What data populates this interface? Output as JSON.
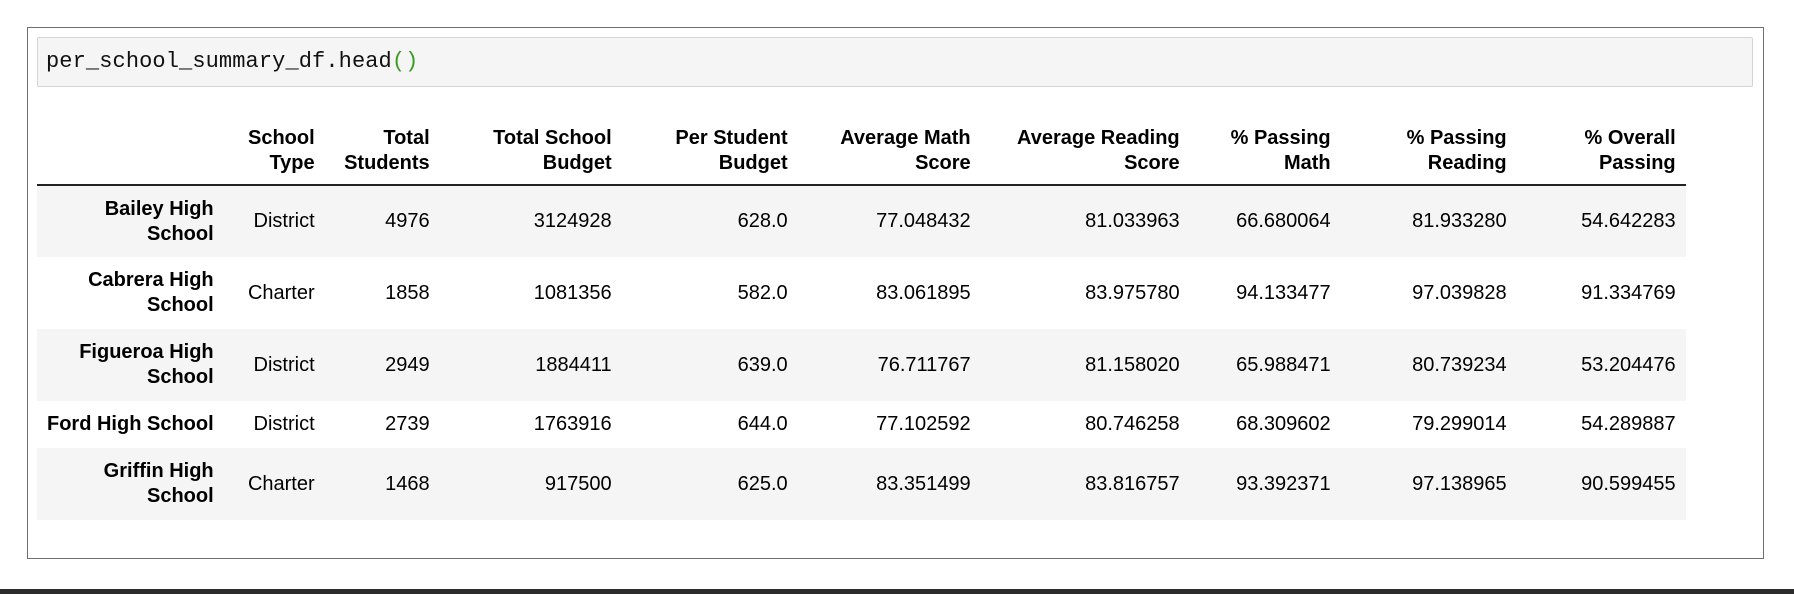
{
  "notebook": {
    "code": {
      "text": "per_school_summary_df.head",
      "parens": "()"
    }
  },
  "dataframe": {
    "columns": [
      {
        "line1": "",
        "line2": ""
      },
      {
        "line1": "School",
        "line2": "Type"
      },
      {
        "line1": "Total",
        "line2": "Students"
      },
      {
        "line1": "Total School",
        "line2": "Budget"
      },
      {
        "line1": "Per Student",
        "line2": "Budget"
      },
      {
        "line1": "Average Math",
        "line2": "Score"
      },
      {
        "line1": "Average Reading",
        "line2": "Score"
      },
      {
        "line1": "% Passing",
        "line2": "Math"
      },
      {
        "line1": "% Passing",
        "line2": "Reading"
      },
      {
        "line1": "% Overall",
        "line2": "Passing"
      }
    ],
    "rows": [
      {
        "index": {
          "line1": "Bailey High",
          "line2": "School"
        },
        "cells": [
          "District",
          "4976",
          "3124928",
          "628.0",
          "77.048432",
          "81.033963",
          "66.680064",
          "81.933280",
          "54.642283"
        ]
      },
      {
        "index": {
          "line1": "Cabrera High",
          "line2": "School"
        },
        "cells": [
          "Charter",
          "1858",
          "1081356",
          "582.0",
          "83.061895",
          "83.975780",
          "94.133477",
          "97.039828",
          "91.334769"
        ]
      },
      {
        "index": {
          "line1": "Figueroa High",
          "line2": "School"
        },
        "cells": [
          "District",
          "2949",
          "1884411",
          "639.0",
          "76.711767",
          "81.158020",
          "65.988471",
          "80.739234",
          "53.204476"
        ]
      },
      {
        "index": {
          "line1": "Ford High School",
          "line2": ""
        },
        "cells": [
          "District",
          "2739",
          "1763916",
          "644.0",
          "77.102592",
          "80.746258",
          "68.309602",
          "79.299014",
          "54.289887"
        ]
      },
      {
        "index": {
          "line1": "Griffin High",
          "line2": "School"
        },
        "cells": [
          "Charter",
          "1468",
          "917500",
          "625.0",
          "83.351499",
          "83.816757",
          "93.392371",
          "97.138965",
          "90.599455"
        ]
      }
    ]
  }
}
